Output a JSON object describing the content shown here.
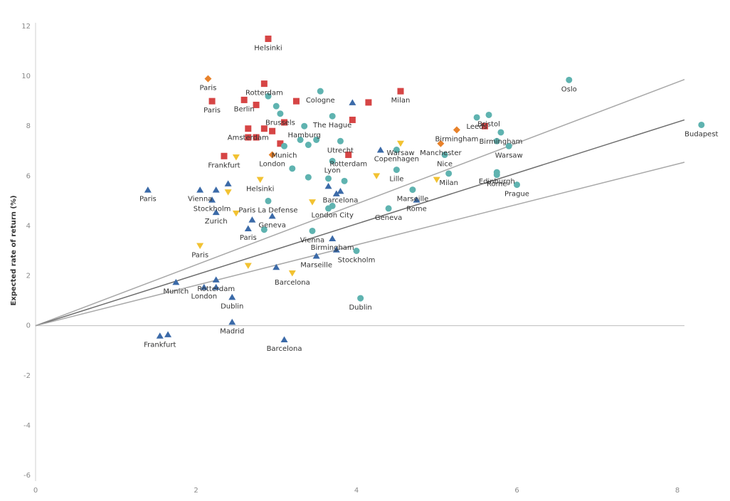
{
  "chart_data": {
    "type": "scatter",
    "xlabel": "",
    "ylabel": "Expected rate of return (%)",
    "xlim": [
      0,
      8
    ],
    "ylim": [
      -6,
      12
    ],
    "x_ticks": [
      "0",
      "2",
      "4",
      "6",
      "8"
    ],
    "y_ticks": [
      "12",
      "10",
      "8",
      "6",
      "4",
      "2",
      "0",
      "-2",
      "-4",
      "-6"
    ],
    "grid": false,
    "marker_colors": {
      "square": "#d64545",
      "circle": "#5fb3b0",
      "diamond": "#e8822b",
      "triangle_down": "#f2c232",
      "triangle_up": "#3b6aa8"
    },
    "lines": [
      {
        "slope": 1.22,
        "color": "#a8a8a8"
      },
      {
        "slope": 1.02,
        "color": "#6d6d6d"
      },
      {
        "slope": 0.81,
        "color": "#a8a8a8"
      }
    ],
    "series": [
      {
        "marker": "square",
        "points": [
          {
            "x": 2.9,
            "y": 11.5,
            "label": "Helsinki"
          },
          {
            "x": 2.85,
            "y": 9.7,
            "label": "Rotterdam"
          },
          {
            "x": 2.2,
            "y": 9.0,
            "label": "Paris"
          },
          {
            "x": 2.6,
            "y": 9.05,
            "label": "Berlin"
          },
          {
            "x": 2.75,
            "y": 8.85,
            "label": ""
          },
          {
            "x": 3.25,
            "y": 9.0,
            "label": ""
          },
          {
            "x": 4.15,
            "y": 8.95,
            "label": ""
          },
          {
            "x": 4.55,
            "y": 9.4,
            "label": "Milan"
          },
          {
            "x": 3.95,
            "y": 8.25,
            "label": ""
          },
          {
            "x": 3.1,
            "y": 8.15,
            "label": ""
          },
          {
            "x": 2.65,
            "y": 7.9,
            "label": "Amsterdam"
          },
          {
            "x": 2.85,
            "y": 7.9,
            "label": ""
          },
          {
            "x": 2.95,
            "y": 7.8,
            "label": ""
          },
          {
            "x": 2.65,
            "y": 7.55,
            "label": ""
          },
          {
            "x": 2.75,
            "y": 7.55,
            "label": ""
          },
          {
            "x": 3.05,
            "y": 7.3,
            "label": ""
          },
          {
            "x": 3.9,
            "y": 6.85,
            "label": "Rotterdam"
          },
          {
            "x": 2.35,
            "y": 6.8,
            "label": "Frankfurt"
          },
          {
            "x": 5.6,
            "y": 8.0,
            "label": ""
          }
        ]
      },
      {
        "marker": "circle",
        "points": [
          {
            "x": 6.65,
            "y": 9.85,
            "label": "Oslo"
          },
          {
            "x": 3.55,
            "y": 9.4,
            "label": "Cologne"
          },
          {
            "x": 2.9,
            "y": 9.2,
            "label": ""
          },
          {
            "x": 3.0,
            "y": 8.8,
            "label": ""
          },
          {
            "x": 3.05,
            "y": 8.5,
            "label": "Brussels"
          },
          {
            "x": 3.7,
            "y": 8.4,
            "label": "The Hague"
          },
          {
            "x": 5.5,
            "y": 8.35,
            "label": "Leeds"
          },
          {
            "x": 5.65,
            "y": 8.45,
            "label": "Bristol"
          },
          {
            "x": 5.8,
            "y": 7.75,
            "label": "Birmingham"
          },
          {
            "x": 8.3,
            "y": 8.05,
            "label": "Budapest"
          },
          {
            "x": 3.35,
            "y": 8.0,
            "label": "Hamburg"
          },
          {
            "x": 3.8,
            "y": 7.4,
            "label": "Utrecht"
          },
          {
            "x": 3.3,
            "y": 7.45,
            "label": ""
          },
          {
            "x": 3.5,
            "y": 7.45,
            "label": ""
          },
          {
            "x": 3.4,
            "y": 7.25,
            "label": ""
          },
          {
            "x": 3.1,
            "y": 7.2,
            "label": "Munich"
          },
          {
            "x": 4.5,
            "y": 7.05,
            "label": "Copenhagen"
          },
          {
            "x": 5.75,
            "y": 7.4,
            "label": ""
          },
          {
            "x": 5.9,
            "y": 7.2,
            "label": "Warsaw"
          },
          {
            "x": 5.1,
            "y": 6.85,
            "label": "Nice"
          },
          {
            "x": 3.7,
            "y": 6.6,
            "label": "Lyon"
          },
          {
            "x": 3.2,
            "y": 6.3,
            "label": ""
          },
          {
            "x": 4.5,
            "y": 6.25,
            "label": "Lille"
          },
          {
            "x": 5.15,
            "y": 6.1,
            "label": "Milan"
          },
          {
            "x": 5.75,
            "y": 6.15,
            "label": "Edinburgh"
          },
          {
            "x": 5.75,
            "y": 6.05,
            "label": "Rome"
          },
          {
            "x": 6.0,
            "y": 5.65,
            "label": "Prague"
          },
          {
            "x": 3.4,
            "y": 5.95,
            "label": ""
          },
          {
            "x": 3.65,
            "y": 5.9,
            "label": ""
          },
          {
            "x": 3.85,
            "y": 5.8,
            "label": ""
          },
          {
            "x": 4.7,
            "y": 5.45,
            "label": "Marseille"
          },
          {
            "x": 2.9,
            "y": 5.0,
            "label": "Paris La Defense"
          },
          {
            "x": 3.7,
            "y": 4.8,
            "label": "London City"
          },
          {
            "x": 3.65,
            "y": 4.7,
            "label": ""
          },
          {
            "x": 4.4,
            "y": 4.7,
            "label": "Geneva"
          },
          {
            "x": 2.85,
            "y": 3.85,
            "label": ""
          },
          {
            "x": 3.45,
            "y": 3.8,
            "label": "Vienna"
          },
          {
            "x": 4.0,
            "y": 3.0,
            "label": "Stockholm"
          },
          {
            "x": 4.05,
            "y": 1.1,
            "label": "Dublin"
          }
        ]
      },
      {
        "marker": "diamond",
        "points": [
          {
            "x": 2.15,
            "y": 9.9,
            "label": "Paris"
          },
          {
            "x": 2.95,
            "y": 6.85,
            "label": "London"
          },
          {
            "x": 5.25,
            "y": 7.85,
            "label": "Birmingham"
          },
          {
            "x": 5.05,
            "y": 7.3,
            "label": "Manchester"
          }
        ]
      },
      {
        "marker": "triangle_down",
        "points": [
          {
            "x": 4.55,
            "y": 7.3,
            "label": "Warsaw"
          },
          {
            "x": 2.5,
            "y": 6.75,
            "label": ""
          },
          {
            "x": 2.8,
            "y": 5.85,
            "label": "Helsinki"
          },
          {
            "x": 4.25,
            "y": 6.0,
            "label": ""
          },
          {
            "x": 5.0,
            "y": 5.85,
            "label": ""
          },
          {
            "x": 2.4,
            "y": 5.35,
            "label": ""
          },
          {
            "x": 2.5,
            "y": 4.5,
            "label": ""
          },
          {
            "x": 3.45,
            "y": 4.95,
            "label": ""
          },
          {
            "x": 2.05,
            "y": 3.2,
            "label": "Paris"
          },
          {
            "x": 2.65,
            "y": 2.4,
            "label": ""
          },
          {
            "x": 3.2,
            "y": 2.1,
            "label": "Barcelona"
          }
        ]
      },
      {
        "marker": "triangle_up",
        "points": [
          {
            "x": 1.4,
            "y": 5.45,
            "label": "Paris"
          },
          {
            "x": 3.95,
            "y": 8.95,
            "label": ""
          },
          {
            "x": 4.3,
            "y": 7.05,
            "label": ""
          },
          {
            "x": 2.05,
            "y": 5.45,
            "label": "Vienna"
          },
          {
            "x": 2.25,
            "y": 5.45,
            "label": ""
          },
          {
            "x": 2.4,
            "y": 5.7,
            "label": ""
          },
          {
            "x": 2.2,
            "y": 5.05,
            "label": "Stockholm"
          },
          {
            "x": 3.65,
            "y": 5.6,
            "label": ""
          },
          {
            "x": 3.75,
            "y": 5.3,
            "label": ""
          },
          {
            "x": 3.8,
            "y": 5.4,
            "label": "Barcelona"
          },
          {
            "x": 4.75,
            "y": 5.05,
            "label": "Rome"
          },
          {
            "x": 2.25,
            "y": 4.55,
            "label": "Zurich"
          },
          {
            "x": 2.7,
            "y": 4.25,
            "label": ""
          },
          {
            "x": 2.95,
            "y": 4.4,
            "label": "Geneva"
          },
          {
            "x": 2.65,
            "y": 3.9,
            "label": "Paris"
          },
          {
            "x": 3.7,
            "y": 3.5,
            "label": "Birmingham"
          },
          {
            "x": 3.5,
            "y": 2.8,
            "label": "Marseille"
          },
          {
            "x": 3.75,
            "y": 3.05,
            "label": ""
          },
          {
            "x": 3.0,
            "y": 2.35,
            "label": ""
          },
          {
            "x": 1.75,
            "y": 1.75,
            "label": "Munich"
          },
          {
            "x": 2.25,
            "y": 1.85,
            "label": "Rotterdam"
          },
          {
            "x": 2.1,
            "y": 1.55,
            "label": "London"
          },
          {
            "x": 2.25,
            "y": 1.55,
            "label": ""
          },
          {
            "x": 2.45,
            "y": 1.15,
            "label": "Dublin"
          },
          {
            "x": 2.45,
            "y": 0.15,
            "label": "Madrid"
          },
          {
            "x": 1.55,
            "y": -0.4,
            "label": "Frankfurt"
          },
          {
            "x": 1.65,
            "y": -0.35,
            "label": ""
          },
          {
            "x": 3.1,
            "y": -0.55,
            "label": "Barcelona"
          }
        ]
      }
    ]
  }
}
